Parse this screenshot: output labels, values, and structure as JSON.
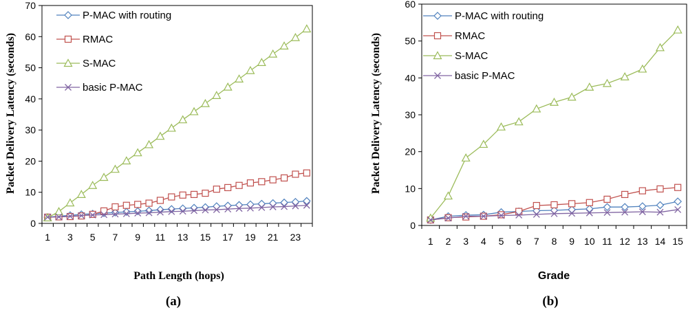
{
  "chart_data": [
    {
      "type": "line",
      "caption": "(a)",
      "title": "",
      "xlabel": "Path Length (hops)",
      "ylabel": "Packet Delivery Latency (seconds)",
      "x": [
        1,
        2,
        3,
        4,
        5,
        6,
        7,
        8,
        9,
        10,
        11,
        12,
        13,
        14,
        15,
        16,
        17,
        18,
        19,
        20,
        21,
        22,
        23,
        24
      ],
      "xticks": [
        "1",
        "3",
        "5",
        "7",
        "9",
        "11",
        "13",
        "15",
        "17",
        "19",
        "21",
        "23"
      ],
      "ylim": [
        0,
        70
      ],
      "yticks": [
        "0",
        "10",
        "20",
        "30",
        "40",
        "50",
        "60",
        "70"
      ],
      "grid": false,
      "legend_position": "top-left",
      "series": [
        {
          "name": "P-MAC with routing",
          "color": "#4f81bd",
          "marker": "diamond",
          "values": [
            2.0,
            2.3,
            2.6,
            2.9,
            3.1,
            3.3,
            3.5,
            3.7,
            3.9,
            4.1,
            4.4,
            4.6,
            4.8,
            5.0,
            5.2,
            5.5,
            5.7,
            5.9,
            6.1,
            6.3,
            6.5,
            6.7,
            6.9,
            7.2
          ]
        },
        {
          "name": "RMAC",
          "color": "#c0504d",
          "marker": "square",
          "values": [
            2.0,
            2.1,
            2.2,
            2.4,
            2.9,
            4.0,
            5.3,
            5.8,
            6.1,
            6.5,
            7.4,
            8.5,
            9.1,
            9.3,
            9.7,
            11.0,
            11.5,
            12.2,
            13.0,
            13.4,
            14.0,
            14.6,
            15.8,
            16.2
          ]
        },
        {
          "name": "S-MAC",
          "color": "#9bbb59",
          "marker": "triangle",
          "values": [
            1.8,
            3.8,
            6.6,
            9.3,
            12.2,
            14.8,
            17.4,
            20.1,
            22.7,
            25.3,
            28.0,
            30.6,
            33.3,
            35.9,
            38.5,
            41.1,
            43.8,
            46.4,
            49.1,
            51.7,
            54.4,
            57.0,
            59.7,
            62.5
          ]
        },
        {
          "name": "basic P-MAC",
          "color": "#8064a2",
          "marker": "x",
          "values": [
            2.0,
            2.1,
            2.3,
            2.5,
            2.7,
            2.8,
            3.0,
            3.1,
            3.3,
            3.4,
            3.6,
            3.8,
            3.9,
            4.1,
            4.3,
            4.4,
            4.6,
            4.8,
            4.9,
            5.1,
            5.3,
            5.4,
            5.6,
            5.8
          ]
        }
      ]
    },
    {
      "type": "line",
      "caption": "(b)",
      "title": "",
      "xlabel": "Grade",
      "ylabel": "Packet Delivery Latency (seconds)",
      "x": [
        1,
        2,
        3,
        4,
        5,
        6,
        7,
        8,
        9,
        10,
        11,
        12,
        13,
        14,
        15
      ],
      "xticks": [
        "1",
        "2",
        "3",
        "4",
        "5",
        "6",
        "7",
        "8",
        "9",
        "10",
        "11",
        "12",
        "13",
        "14",
        "15"
      ],
      "ylim": [
        0,
        60
      ],
      "yticks": [
        "0",
        "10",
        "20",
        "30",
        "40",
        "50",
        "60"
      ],
      "grid": false,
      "legend_position": "top-left",
      "series": [
        {
          "name": "P-MAC with routing",
          "color": "#4f81bd",
          "marker": "diamond",
          "values": [
            1.5,
            2.5,
            2.8,
            2.9,
            3.6,
            3.8,
            4.0,
            4.1,
            4.3,
            4.5,
            5.0,
            5.0,
            5.2,
            5.5,
            6.5
          ]
        },
        {
          "name": "RMAC",
          "color": "#c0504d",
          "marker": "square",
          "values": [
            1.5,
            2.1,
            2.3,
            2.5,
            2.9,
            3.8,
            5.4,
            5.6,
            5.9,
            6.2,
            7.1,
            8.4,
            9.4,
            9.9,
            10.3
          ]
        },
        {
          "name": "S-MAC",
          "color": "#9bbb59",
          "marker": "triangle",
          "values": [
            2.0,
            8.0,
            18.3,
            22.0,
            26.7,
            28.1,
            31.6,
            33.4,
            34.8,
            37.5,
            38.5,
            40.3,
            42.4,
            48.2,
            53.0
          ]
        },
        {
          "name": "basic P-MAC",
          "color": "#8064a2",
          "marker": "x",
          "values": [
            1.5,
            2.0,
            2.5,
            2.5,
            2.7,
            2.8,
            3.0,
            3.2,
            3.3,
            3.4,
            3.5,
            3.6,
            3.7,
            3.6,
            4.3
          ]
        }
      ]
    }
  ]
}
